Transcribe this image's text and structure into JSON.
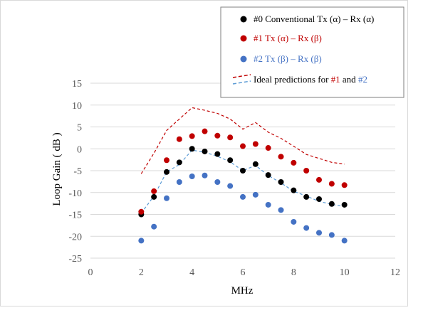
{
  "chart_data": {
    "type": "scatter",
    "title": "",
    "xlabel": "MHz",
    "ylabel": "Loop Gain ( dB )",
    "xlim": [
      0,
      12
    ],
    "ylim": [
      -25,
      15
    ],
    "x_ticks": [
      0,
      2,
      4,
      6,
      8,
      10,
      12
    ],
    "y_ticks": [
      15,
      10,
      5,
      0,
      -5,
      -10,
      -15,
      -20,
      -25
    ],
    "grid": "horizontal",
    "legend_position": "top-right",
    "series": [
      {
        "name": "#0 Conventional Tx (α) – Rx (α)",
        "kind": "markers",
        "color": "#000000",
        "x": [
          2,
          2.5,
          3,
          3.5,
          4,
          4.5,
          5,
          5.5,
          6,
          6.5,
          7,
          7.5,
          8,
          8.5,
          9,
          9.5,
          10
        ],
        "y": [
          -15,
          -11,
          -5.3,
          -3.1,
          0,
          -0.6,
          -1.2,
          -2.6,
          -5,
          -3.5,
          -6,
          -7.6,
          -9.5,
          -11,
          -11.5,
          -12.6,
          -12.8
        ]
      },
      {
        "name": "#1  Tx (α) – Rx (β)",
        "kind": "markers",
        "color": "#c00000",
        "x": [
          2,
          2.5,
          3,
          3.5,
          4,
          4.5,
          5,
          5.5,
          6,
          6.5,
          7,
          7.5,
          8,
          8.5,
          9,
          9.5,
          10
        ],
        "y": [
          -14.4,
          -9.7,
          -2.6,
          2.2,
          2.9,
          4,
          3,
          2.6,
          0.6,
          1.1,
          0.2,
          -1.8,
          -3.2,
          -5,
          -7.1,
          -8,
          -8.3
        ]
      },
      {
        "name": "#2  Tx (β) – Rx (β)",
        "kind": "markers",
        "color": "#4472c4",
        "x": [
          2,
          2.5,
          3,
          3.5,
          4,
          4.5,
          5,
          5.5,
          6,
          6.5,
          7,
          7.5,
          8,
          8.5,
          9,
          9.5,
          10
        ],
        "y": [
          -21,
          -17.8,
          -11.3,
          -7.6,
          -6.3,
          -6.1,
          -7.6,
          -8.5,
          -11,
          -10.5,
          -12.8,
          -14,
          -16.7,
          -18.1,
          -19.2,
          -19.7,
          -21
        ]
      },
      {
        "name": "ideal-1",
        "kind": "dashed-line",
        "color": "#c00000",
        "x": [
          2,
          2.5,
          3,
          3.5,
          4,
          4.5,
          5,
          5.5,
          6,
          6.5,
          7,
          7.5,
          8,
          8.5,
          9,
          9.5,
          10
        ],
        "y": [
          -5.7,
          -1,
          4.2,
          6.8,
          9.4,
          8.8,
          8.1,
          6.8,
          4.5,
          6,
          3.8,
          2.4,
          0.6,
          -1.3,
          -2.2,
          -3.1,
          -3.5
        ]
      },
      {
        "name": "ideal-2",
        "kind": "dashed-line",
        "color": "#5b9bd5",
        "x": [
          2,
          2.5,
          3,
          3.5,
          4,
          4.5,
          5,
          5.5,
          6,
          6.5,
          7,
          7.5,
          8,
          8.5,
          9,
          9.5,
          10
        ],
        "y": [
          -14.7,
          -10.8,
          -5.3,
          -3.6,
          -0.3,
          -0.8,
          -1.7,
          -3,
          -5,
          -3.8,
          -6.1,
          -7.8,
          -9.7,
          -10.8,
          -12,
          -12.7,
          -13.2
        ]
      }
    ],
    "legend": {
      "items": [
        {
          "marker": "dot",
          "color": "#000000",
          "text": "#0 Conventional Tx (α) – Rx (α)"
        },
        {
          "marker": "dot",
          "color": "#c00000",
          "text": "#1  Tx (α) – Rx (β)",
          "text_color": "#c00000"
        },
        {
          "marker": "dot",
          "color": "#4472c4",
          "text": "#2  Tx (β) – Rx (β)",
          "text_color": "#4472c4"
        },
        {
          "marker": "dashes",
          "dash_colors": [
            "#c00000",
            "#5b9bd5"
          ],
          "text_parts": [
            {
              "text": "Ideal predictions for ",
              "color": "#000000"
            },
            {
              "text": "#1",
              "color": "#c00000"
            },
            {
              "text": " and ",
              "color": "#000000"
            },
            {
              "text": "#2",
              "color": "#4472c4"
            }
          ]
        }
      ]
    }
  }
}
